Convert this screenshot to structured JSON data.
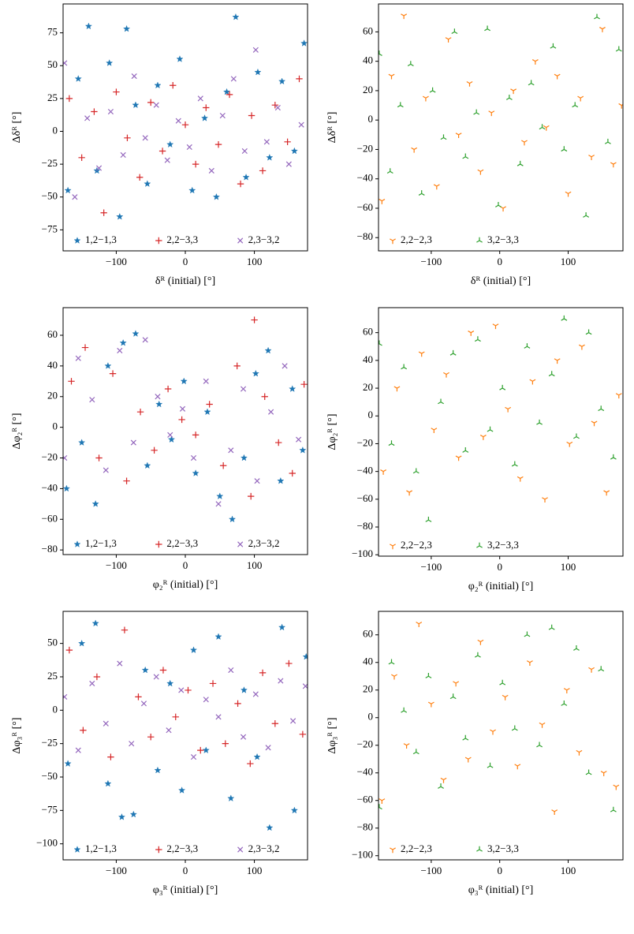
{
  "chart_data": [
    {
      "type": "scatter",
      "xlabel": "δᴿ (initial) [°]",
      "ylabel": "Δδᴿ [°]",
      "legend": "lower center",
      "xlim": [
        -177,
        177
      ],
      "ylim": [
        -91,
        97
      ],
      "xticks": [
        {
          "value": -100,
          "label": "−100"
        },
        0,
        100
      ],
      "yticks": [
        {
          "value": -75,
          "label": "−75"
        },
        {
          "value": -50,
          "label": "−50"
        },
        {
          "value": -25,
          "label": "−25"
        },
        0,
        25,
        50,
        75
      ],
      "series": [
        {
          "name": "1,2−1,3",
          "color": "#1f77b4",
          "marker": "star",
          "x": [
            -170,
            -155,
            -140,
            -128,
            -110,
            -95,
            -85,
            -72,
            -55,
            -40,
            -22,
            -8,
            10,
            28,
            45,
            60,
            73,
            88,
            105,
            122,
            140,
            158,
            172
          ],
          "values": [
            -45,
            40,
            80,
            -30,
            52,
            -65,
            78,
            20,
            -40,
            35,
            -10,
            55,
            -45,
            10,
            -50,
            30,
            87,
            -35,
            45,
            -20,
            38,
            -15,
            67
          ]
        },
        {
          "name": "2,2−3,3",
          "color": "#d62728",
          "marker": "plus",
          "x": [
            -168,
            -150,
            -132,
            -118,
            -100,
            -84,
            -66,
            -50,
            -33,
            -18,
            0,
            15,
            30,
            48,
            64,
            80,
            96,
            112,
            130,
            148,
            165
          ],
          "values": [
            25,
            -20,
            15,
            -62,
            30,
            -5,
            -35,
            22,
            -15,
            35,
            5,
            -25,
            18,
            -10,
            28,
            -40,
            12,
            -30,
            20,
            -8,
            40
          ]
        },
        {
          "name": "2,3−3,2",
          "color": "#9467bd",
          "marker": "x",
          "x": [
            -175,
            -160,
            -142,
            -125,
            -108,
            -90,
            -74,
            -58,
            -42,
            -26,
            -10,
            6,
            22,
            38,
            54,
            70,
            86,
            102,
            118,
            134,
            150,
            168
          ],
          "values": [
            52,
            -50,
            10,
            -28,
            15,
            -18,
            42,
            -5,
            20,
            -22,
            8,
            -12,
            25,
            -30,
            12,
            40,
            -15,
            62,
            -8,
            18,
            -25,
            5
          ]
        }
      ]
    },
    {
      "type": "scatter",
      "xlabel": "δᴿ (initial) [°]",
      "ylabel": "Δδᴿ [°]",
      "legend": "lower left",
      "xlim": [
        -177,
        180
      ],
      "ylim": [
        -89,
        79
      ],
      "xticks": [
        {
          "value": -100,
          "label": "−100"
        },
        0,
        100
      ],
      "yticks": [
        {
          "value": -80,
          "label": "−80"
        },
        {
          "value": -60,
          "label": "−60"
        },
        {
          "value": -40,
          "label": "−40"
        },
        {
          "value": -20,
          "label": "−20"
        },
        0,
        20,
        40,
        60
      ],
      "series": [
        {
          "name": "2,2−2,3",
          "color": "#ff7f0e",
          "marker": "tri_down",
          "x": [
            -172,
            -158,
            -140,
            -125,
            -108,
            -92,
            -75,
            -60,
            -44,
            -28,
            -12,
            5,
            20,
            36,
            52,
            68,
            84,
            100,
            118,
            134,
            150,
            166,
            178
          ],
          "values": [
            -55,
            30,
            71,
            -20,
            15,
            -45,
            55,
            -10,
            25,
            -35,
            5,
            -60,
            20,
            -15,
            40,
            -5,
            30,
            -50,
            15,
            -25,
            62,
            -30,
            10
          ]
        },
        {
          "name": "3,2−3,3",
          "color": "#2ca02c",
          "marker": "tri_up",
          "x": [
            -176,
            -160,
            -145,
            -130,
            -114,
            -98,
            -82,
            -66,
            -50,
            -34,
            -18,
            -2,
            14,
            30,
            46,
            62,
            78,
            94,
            110,
            126,
            142,
            158,
            174
          ],
          "values": [
            45,
            -35,
            10,
            38,
            -50,
            20,
            -12,
            60,
            -25,
            5,
            62,
            -58,
            15,
            -30,
            25,
            -5,
            50,
            -20,
            10,
            -65,
            70,
            -15,
            48
          ]
        }
      ]
    },
    {
      "type": "scatter",
      "xlabel": "φ₂ᴿ (initial) [°]",
      "ylabel": "Δφ₂ᴿ [°]",
      "legend": "lower center",
      "xlim": [
        -177,
        177
      ],
      "ylim": [
        -83,
        78
      ],
      "xticks": [
        {
          "value": -100,
          "label": "−100"
        },
        0,
        100
      ],
      "yticks": [
        {
          "value": -80,
          "label": "−80"
        },
        {
          "value": -60,
          "label": "−60"
        },
        {
          "value": -40,
          "label": "−40"
        },
        {
          "value": -20,
          "label": "−20"
        },
        0,
        20,
        40,
        60
      ],
      "series": [
        {
          "name": "1,2−1,3",
          "color": "#1f77b4",
          "marker": "star",
          "x": [
            -172,
            -150,
            -130,
            -112,
            -90,
            -72,
            -55,
            -38,
            -20,
            -2,
            15,
            32,
            50,
            68,
            85,
            102,
            120,
            138,
            155,
            170
          ],
          "values": [
            -40,
            -10,
            -50,
            40,
            55,
            61,
            -25,
            15,
            -8,
            30,
            -30,
            10,
            -45,
            -60,
            -20,
            35,
            50,
            -35,
            25,
            -15
          ]
        },
        {
          "name": "2,2−3,3",
          "color": "#d62728",
          "marker": "plus",
          "x": [
            -165,
            -145,
            -125,
            -105,
            -85,
            -65,
            -45,
            -25,
            -5,
            15,
            35,
            55,
            75,
            95,
            100,
            115,
            135,
            155,
            172
          ],
          "values": [
            30,
            52,
            -20,
            35,
            -35,
            10,
            -15,
            25,
            5,
            -5,
            15,
            -25,
            40,
            -45,
            70,
            20,
            -10,
            -30,
            28
          ]
        },
        {
          "name": "2,3−3,2",
          "color": "#9467bd",
          "marker": "x",
          "x": [
            -175,
            -155,
            -135,
            -115,
            -95,
            -75,
            -58,
            -40,
            -22,
            -4,
            12,
            30,
            48,
            66,
            84,
            104,
            124,
            144,
            164
          ],
          "values": [
            -20,
            45,
            18,
            -28,
            50,
            -10,
            57,
            20,
            -5,
            12,
            -20,
            30,
            -50,
            -15,
            25,
            -35,
            10,
            40,
            -8
          ]
        }
      ]
    },
    {
      "type": "scatter",
      "xlabel": "φ₂ᴿ (initial) [°]",
      "ylabel": "Δφ₂ᴿ [°]",
      "legend": "lower left",
      "xlim": [
        -177,
        180
      ],
      "ylim": [
        -101,
        78
      ],
      "xticks": [
        {
          "value": -100,
          "label": "−100"
        },
        0,
        100
      ],
      "yticks": [
        {
          "value": -100,
          "label": "−100"
        },
        {
          "value": -80,
          "label": "−80"
        },
        {
          "value": -60,
          "label": "−60"
        },
        {
          "value": -40,
          "label": "−40"
        },
        {
          "value": -20,
          "label": "−20"
        },
        0,
        20,
        40,
        60
      ],
      "series": [
        {
          "name": "2,2−2,3",
          "color": "#ff7f0e",
          "marker": "tri_down",
          "x": [
            -170,
            -150,
            -132,
            -114,
            -96,
            -78,
            -60,
            -42,
            -24,
            -6,
            12,
            30,
            48,
            66,
            84,
            102,
            120,
            138,
            156,
            174
          ],
          "values": [
            -40,
            20,
            -55,
            45,
            -10,
            30,
            -30,
            60,
            -15,
            65,
            5,
            -45,
            25,
            -60,
            40,
            -20,
            50,
            -5,
            -55,
            15
          ]
        },
        {
          "name": "3,2−3,3",
          "color": "#2ca02c",
          "marker": "tri_up",
          "x": [
            -176,
            -158,
            -140,
            -122,
            -104,
            -86,
            -68,
            -50,
            -32,
            -14,
            4,
            22,
            40,
            58,
            76,
            94,
            112,
            130,
            148,
            166
          ],
          "values": [
            52,
            -20,
            35,
            -40,
            -75,
            10,
            45,
            -25,
            55,
            -10,
            20,
            -35,
            50,
            -5,
            30,
            70,
            -15,
            60,
            5,
            -30
          ]
        }
      ]
    },
    {
      "type": "scatter",
      "xlabel": "φ₃ᴿ (initial) [°]",
      "ylabel": "Δφ₃ᴿ [°]",
      "legend": "lower center",
      "xlim": [
        -177,
        177
      ],
      "ylim": [
        -112,
        74
      ],
      "xticks": [
        {
          "value": -100,
          "label": "−100"
        },
        0,
        100
      ],
      "yticks": [
        {
          "value": -100,
          "label": "−100"
        },
        {
          "value": -75,
          "label": "−75"
        },
        {
          "value": -50,
          "label": "−50"
        },
        {
          "value": -25,
          "label": "−25"
        },
        0,
        25,
        50
      ],
      "series": [
        {
          "name": "1,2−1,3",
          "color": "#1f77b4",
          "marker": "star",
          "x": [
            -170,
            -150,
            -130,
            -112,
            -92,
            -75,
            -58,
            -40,
            -22,
            -5,
            12,
            30,
            48,
            66,
            85,
            104,
            122,
            140,
            158,
            175
          ],
          "values": [
            -40,
            50,
            65,
            -55,
            -80,
            -78,
            30,
            -45,
            20,
            -60,
            45,
            -30,
            55,
            -66,
            15,
            -35,
            -88,
            62,
            -75,
            40
          ]
        },
        {
          "name": "2,2−3,3",
          "color": "#d62728",
          "marker": "plus",
          "x": [
            -168,
            -148,
            -128,
            -108,
            -88,
            -68,
            -50,
            -32,
            -14,
            4,
            22,
            40,
            58,
            76,
            94,
            112,
            130,
            150,
            170
          ],
          "values": [
            45,
            -15,
            25,
            -35,
            60,
            10,
            -20,
            30,
            -5,
            15,
            -30,
            20,
            -25,
            5,
            -40,
            28,
            -10,
            35,
            -18
          ]
        },
        {
          "name": "2,3−3,2",
          "color": "#9467bd",
          "marker": "x",
          "x": [
            -175,
            -155,
            -135,
            -115,
            -95,
            -78,
            -60,
            -42,
            -24,
            -6,
            12,
            30,
            48,
            66,
            84,
            102,
            120,
            138,
            156,
            174
          ],
          "values": [
            10,
            -30,
            20,
            -10,
            35,
            -25,
            5,
            25,
            -15,
            15,
            -35,
            8,
            -5,
            30,
            -20,
            12,
            -28,
            22,
            -8,
            18
          ]
        }
      ]
    },
    {
      "type": "scatter",
      "xlabel": "φ₃ᴿ (initial) [°]",
      "ylabel": "Δφ₃ᴿ [°]",
      "legend": "lower left",
      "xlim": [
        -177,
        180
      ],
      "ylim": [
        -103,
        77
      ],
      "xticks": [
        {
          "value": -100,
          "label": "−100"
        },
        0,
        100
      ],
      "yticks": [
        {
          "value": -100,
          "label": "−100"
        },
        {
          "value": -80,
          "label": "−80"
        },
        {
          "value": -60,
          "label": "−60"
        },
        {
          "value": -40,
          "label": "−40"
        },
        {
          "value": -20,
          "label": "−20"
        },
        0,
        20,
        40,
        60
      ],
      "series": [
        {
          "name": "2,2−2,3",
          "color": "#ff7f0e",
          "marker": "tri_down",
          "x": [
            -172,
            -154,
            -136,
            -118,
            -100,
            -82,
            -64,
            -46,
            -28,
            -10,
            8,
            26,
            44,
            62,
            80,
            98,
            116,
            134,
            152,
            170
          ],
          "values": [
            -60,
            30,
            -20,
            68,
            10,
            -45,
            25,
            -30,
            55,
            -10,
            15,
            -35,
            40,
            -5,
            -68,
            20,
            -25,
            35,
            -40,
            -50
          ]
        },
        {
          "name": "3,2−3,3",
          "color": "#2ca02c",
          "marker": "tri_up",
          "x": [
            -176,
            -158,
            -140,
            -122,
            -104,
            -86,
            -68,
            -50,
            -32,
            -14,
            4,
            22,
            40,
            58,
            76,
            94,
            112,
            130,
            148,
            166
          ],
          "values": [
            -65,
            40,
            5,
            -25,
            30,
            -50,
            15,
            -15,
            45,
            -35,
            25,
            -8,
            60,
            -20,
            65,
            10,
            50,
            -40,
            35,
            -67
          ]
        }
      ]
    }
  ]
}
